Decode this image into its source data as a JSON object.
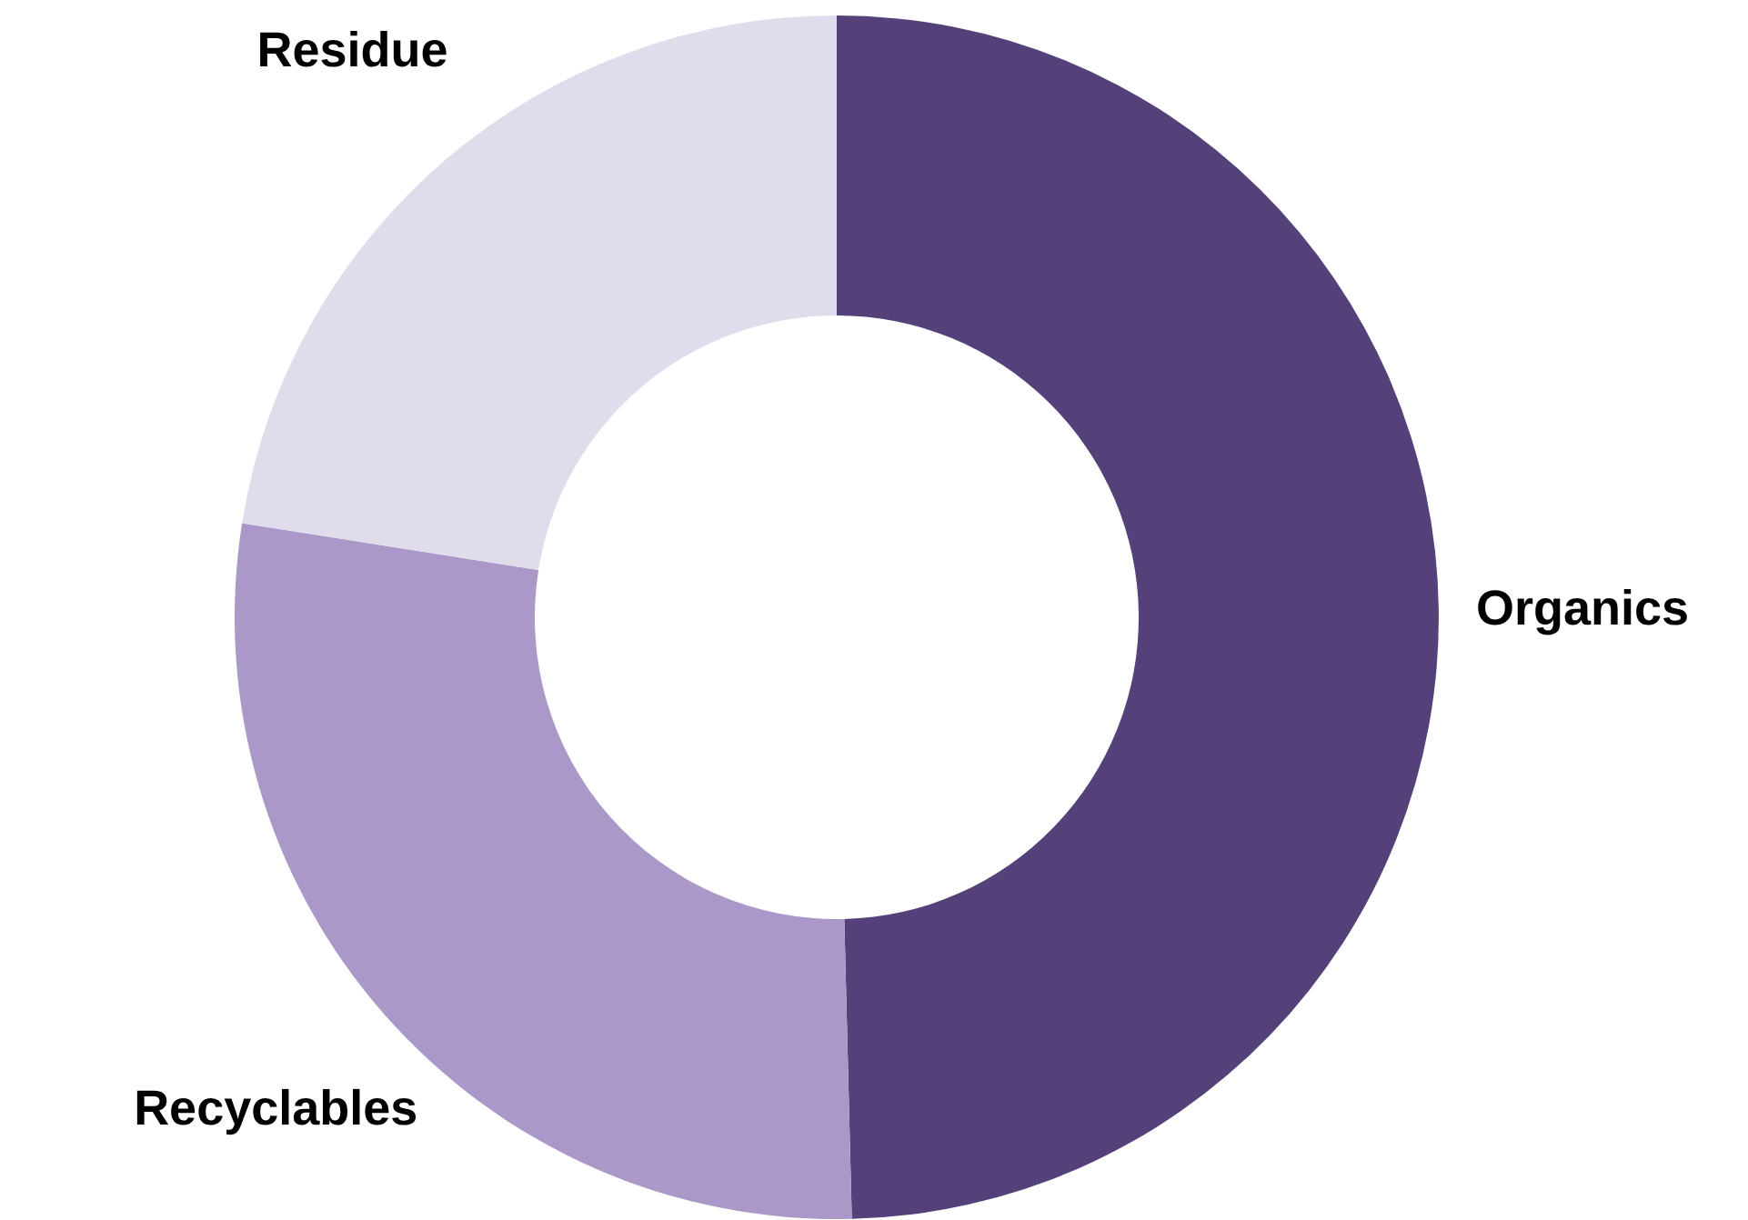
{
  "chart_data": {
    "type": "donut",
    "categories": [
      "Organics",
      "Recyclables",
      "Residue"
    ],
    "values": [
      49.6,
      27.9,
      22.5
    ],
    "colors": [
      "#54417a",
      "#a998c8",
      "#e0dcec"
    ]
  }
}
